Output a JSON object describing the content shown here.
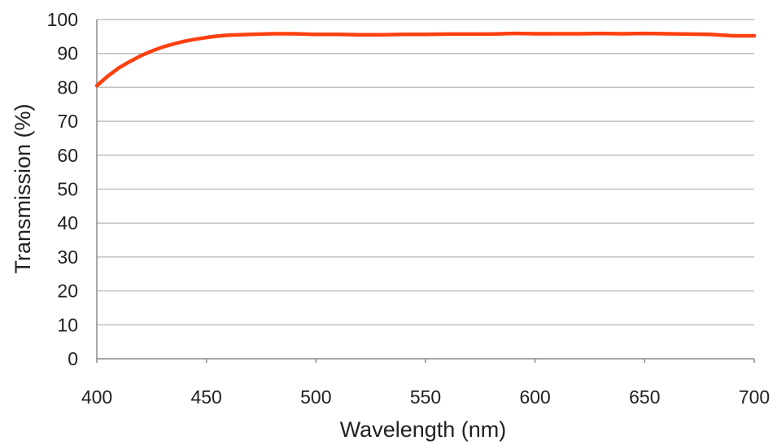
{
  "chart_data": {
    "type": "line",
    "title": "",
    "xlabel": "Wavelength (nm)",
    "ylabel": "Transmission (%)",
    "xlim": [
      400,
      700
    ],
    "ylim": [
      0,
      100
    ],
    "x_ticks": [
      400,
      450,
      500,
      550,
      600,
      650,
      700
    ],
    "y_ticks": [
      0,
      10,
      20,
      30,
      40,
      50,
      60,
      70,
      80,
      90,
      100
    ],
    "grid": "horizontal",
    "legend": "none",
    "series": [
      {
        "color": "#ff4010",
        "x": [
          400,
          405,
          410,
          415,
          420,
          425,
          430,
          435,
          440,
          445,
          450,
          455,
          460,
          470,
          480,
          490,
          500,
          510,
          520,
          530,
          540,
          550,
          560,
          570,
          580,
          590,
          600,
          610,
          620,
          630,
          640,
          650,
          660,
          670,
          680,
          690,
          700
        ],
        "y": [
          80.5,
          83.3,
          85.7,
          87.6,
          89.3,
          90.7,
          91.9,
          92.8,
          93.6,
          94.2,
          94.7,
          95.1,
          95.4,
          95.6,
          95.8,
          95.8,
          95.6,
          95.6,
          95.5,
          95.5,
          95.6,
          95.6,
          95.7,
          95.7,
          95.7,
          95.9,
          95.8,
          95.8,
          95.8,
          95.9,
          95.8,
          95.9,
          95.8,
          95.7,
          95.6,
          95.2,
          95.2
        ]
      }
    ]
  }
}
